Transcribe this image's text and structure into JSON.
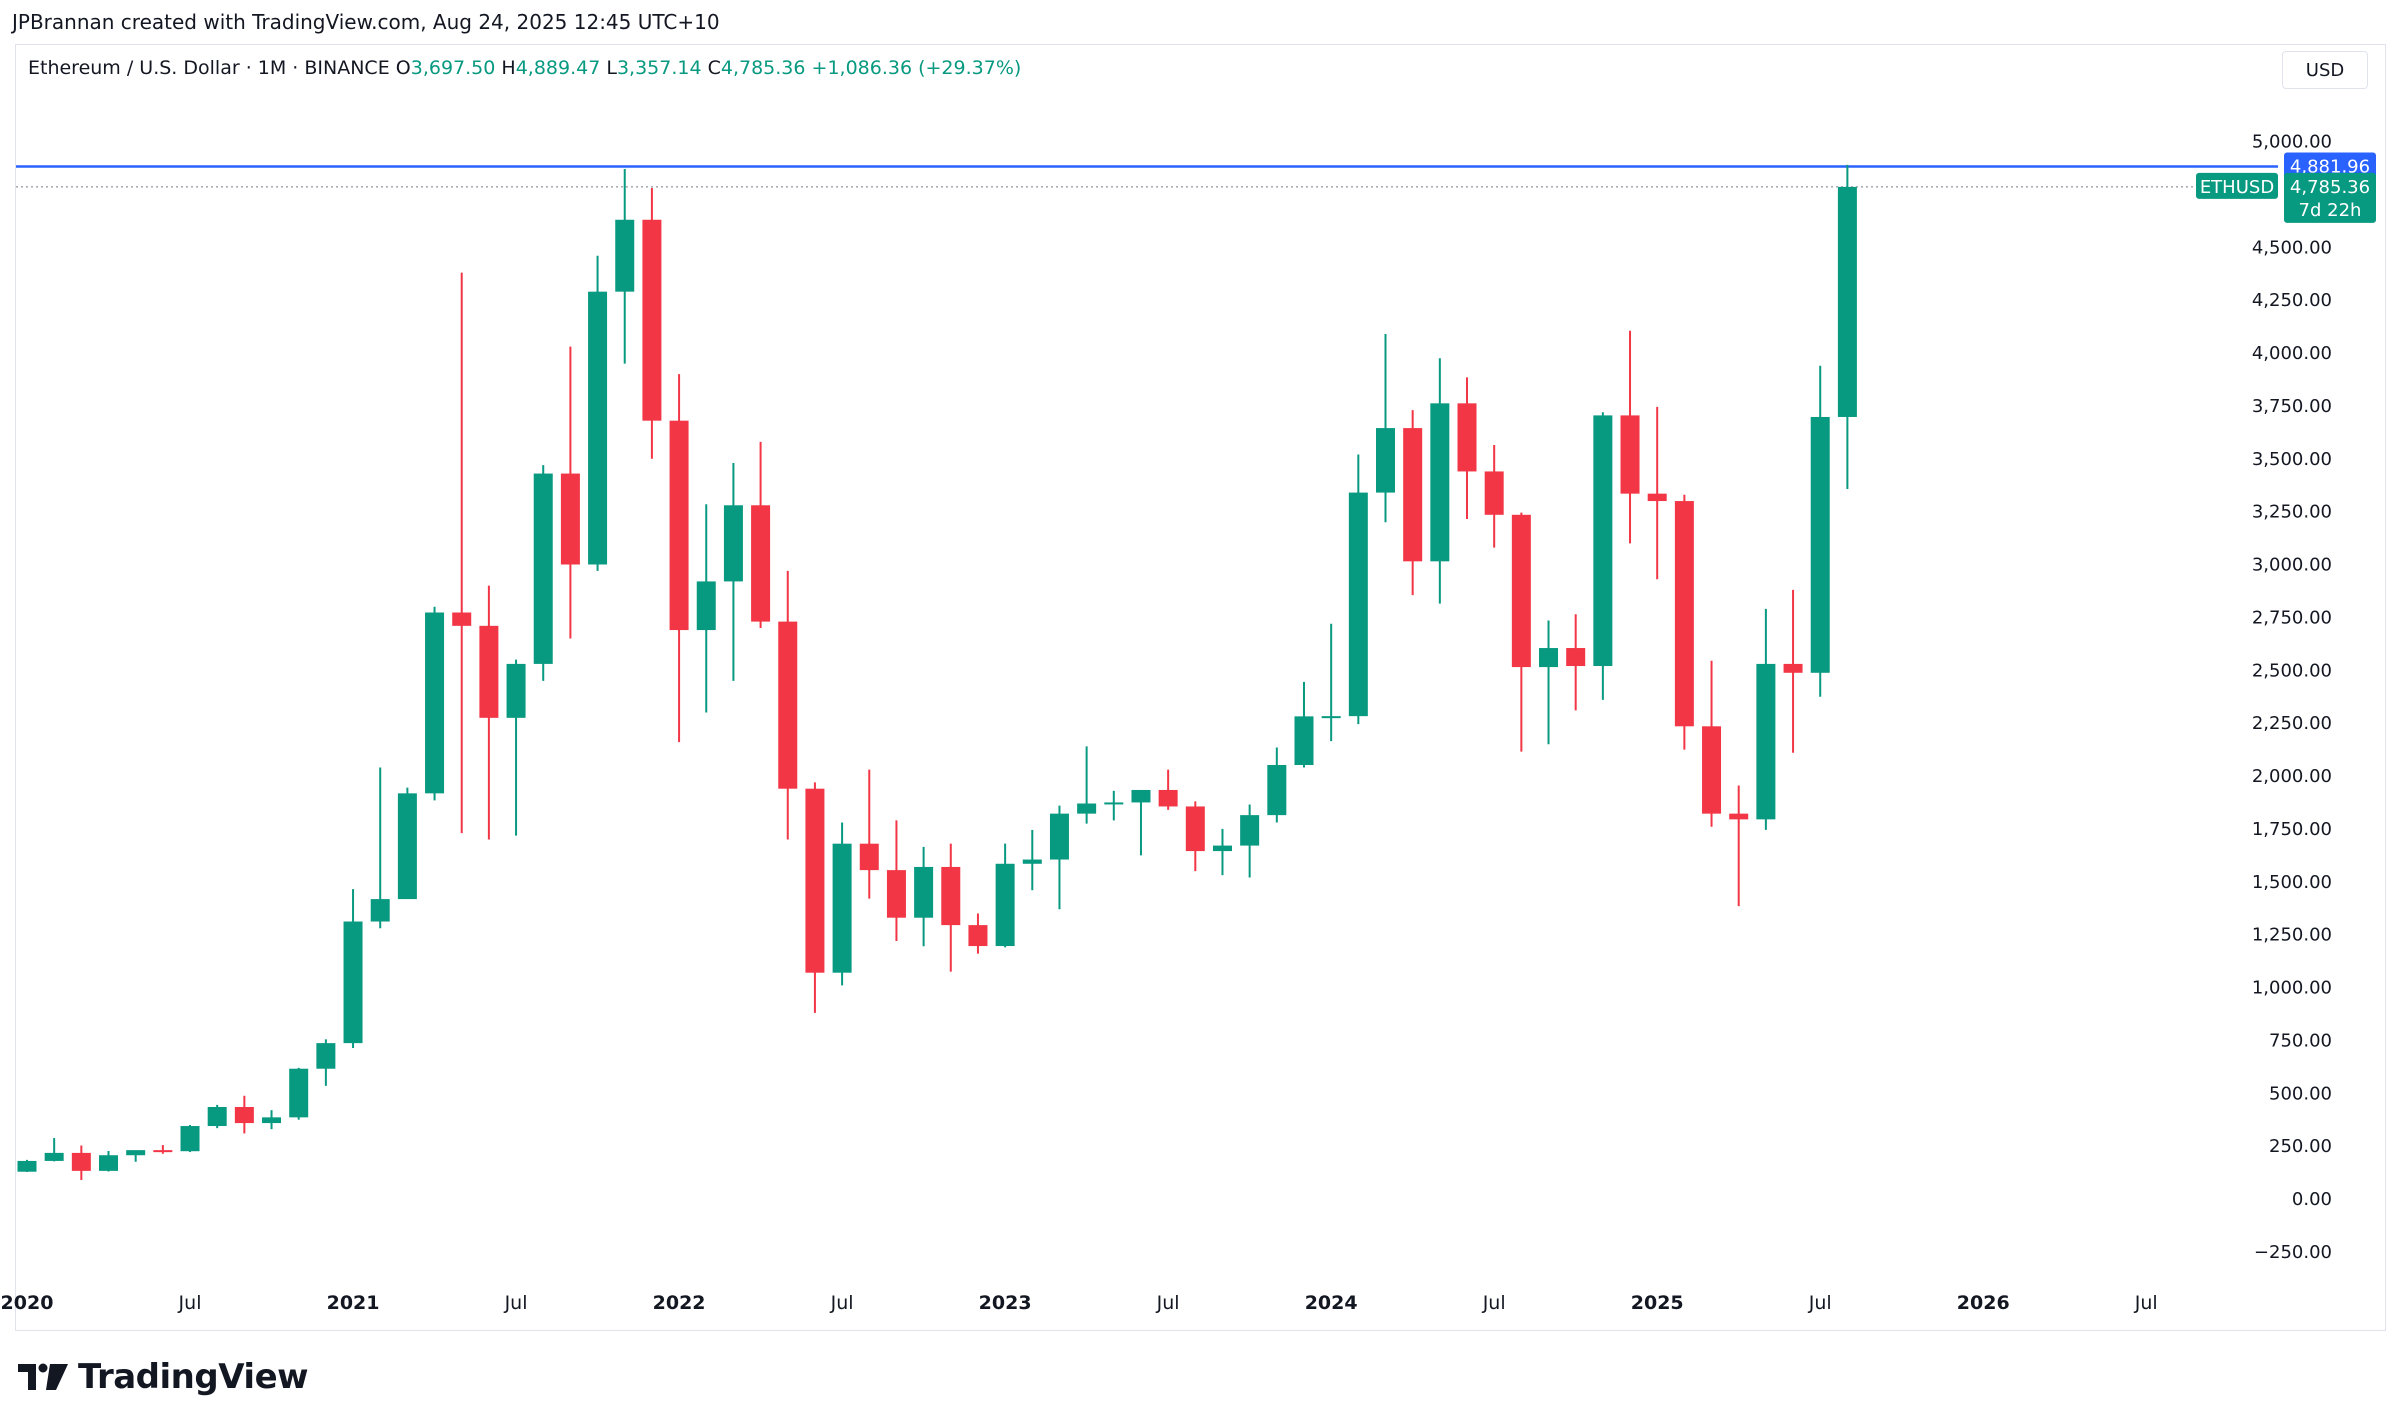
{
  "header": {
    "attribution": "JPBrannan created with TradingView.com, Aug 24, 2025 12:45 UTC+10"
  },
  "legend": {
    "symbol_title": "Ethereum / U.S. Dollar · 1M · BINANCE",
    "open_key": "O",
    "open_value": "3,697.50",
    "high_key": "H",
    "high_value": "4,889.47",
    "low_key": "L",
    "low_value": "3,357.14",
    "close_key": "C",
    "close_value": "4,785.36",
    "change": "+1,086.36 (+29.37%)"
  },
  "currency_button": "USD",
  "footer": {
    "brand": "TradingView"
  },
  "colors": {
    "up": "#089981",
    "down": "#f23645",
    "hline": "#2962ff",
    "grid": "#e0e3eb"
  },
  "chart_data": {
    "type": "candlestick",
    "y_ticks": [
      -250,
      0,
      250,
      500,
      750,
      1000,
      1250,
      1500,
      1750,
      2000,
      2250,
      2500,
      2750,
      3000,
      3250,
      3500,
      3750,
      4000,
      4250,
      4500,
      5000
    ],
    "y_tick_labels": [
      "−250.00",
      "0.00",
      "250.00",
      "500.00",
      "750.00",
      "1,000.00",
      "1,250.00",
      "1,500.00",
      "1,750.00",
      "2,000.00",
      "2,250.00",
      "2,500.00",
      "2,750.00",
      "3,000.00",
      "3,250.00",
      "3,500.00",
      "3,750.00",
      "4,000.00",
      "4,250.00",
      "4,500.00",
      "5,000.00"
    ],
    "x_labels": [
      {
        "label": "2020",
        "bold": true,
        "month_index": 0
      },
      {
        "label": "Jul",
        "bold": false,
        "month_index": 6
      },
      {
        "label": "2021",
        "bold": true,
        "month_index": 12
      },
      {
        "label": "Jul",
        "bold": false,
        "month_index": 18
      },
      {
        "label": "2022",
        "bold": true,
        "month_index": 24
      },
      {
        "label": "Jul",
        "bold": false,
        "month_index": 30
      },
      {
        "label": "2023",
        "bold": true,
        "month_index": 36
      },
      {
        "label": "Jul",
        "bold": false,
        "month_index": 42
      },
      {
        "label": "2024",
        "bold": true,
        "month_index": 48
      },
      {
        "label": "Jul",
        "bold": false,
        "month_index": 54
      },
      {
        "label": "2025",
        "bold": true,
        "month_index": 60
      },
      {
        "label": "Jul",
        "bold": false,
        "month_index": 66
      },
      {
        "label": "2026",
        "bold": true,
        "month_index": 72
      },
      {
        "label": "Jul",
        "bold": false,
        "month_index": 78
      }
    ],
    "candles": [
      {
        "t": "2020-01",
        "o": 129,
        "h": 185,
        "l": 128,
        "c": 180
      },
      {
        "t": "2020-02",
        "o": 180,
        "h": 288,
        "l": 178,
        "c": 218
      },
      {
        "t": "2020-03",
        "o": 218,
        "h": 253,
        "l": 90,
        "c": 133
      },
      {
        "t": "2020-04",
        "o": 133,
        "h": 227,
        "l": 130,
        "c": 207
      },
      {
        "t": "2020-05",
        "o": 207,
        "h": 224,
        "l": 176,
        "c": 231
      },
      {
        "t": "2020-06",
        "o": 231,
        "h": 255,
        "l": 214,
        "c": 226
      },
      {
        "t": "2020-07",
        "o": 226,
        "h": 350,
        "l": 222,
        "c": 345
      },
      {
        "t": "2020-08",
        "o": 345,
        "h": 445,
        "l": 335,
        "c": 435
      },
      {
        "t": "2020-09",
        "o": 435,
        "h": 488,
        "l": 310,
        "c": 359
      },
      {
        "t": "2020-10",
        "o": 359,
        "h": 420,
        "l": 330,
        "c": 386
      },
      {
        "t": "2020-11",
        "o": 386,
        "h": 620,
        "l": 375,
        "c": 616
      },
      {
        "t": "2020-12",
        "o": 616,
        "h": 755,
        "l": 535,
        "c": 737
      },
      {
        "t": "2021-01",
        "o": 737,
        "h": 1465,
        "l": 714,
        "c": 1312
      },
      {
        "t": "2021-02",
        "o": 1312,
        "h": 2040,
        "l": 1280,
        "c": 1418
      },
      {
        "t": "2021-03",
        "o": 1418,
        "h": 1945,
        "l": 1430,
        "c": 1918
      },
      {
        "t": "2021-04",
        "o": 1918,
        "h": 2800,
        "l": 1885,
        "c": 2773
      },
      {
        "t": "2021-05",
        "o": 2773,
        "h": 4380,
        "l": 1730,
        "c": 2710
      },
      {
        "t": "2021-06",
        "o": 2710,
        "h": 2900,
        "l": 1700,
        "c": 2275
      },
      {
        "t": "2021-07",
        "o": 2275,
        "h": 2550,
        "l": 1718,
        "c": 2530
      },
      {
        "t": "2021-08",
        "o": 2530,
        "h": 3470,
        "l": 2450,
        "c": 3430
      },
      {
        "t": "2021-09",
        "o": 3430,
        "h": 4030,
        "l": 2650,
        "c": 3000
      },
      {
        "t": "2021-10",
        "o": 3000,
        "h": 4460,
        "l": 2970,
        "c": 4290
      },
      {
        "t": "2021-11",
        "o": 4290,
        "h": 4870,
        "l": 3950,
        "c": 4630
      },
      {
        "t": "2021-12",
        "o": 4630,
        "h": 4780,
        "l": 3500,
        "c": 3680
      },
      {
        "t": "2022-01",
        "o": 3680,
        "h": 3900,
        "l": 2160,
        "c": 2690
      },
      {
        "t": "2022-02",
        "o": 2690,
        "h": 3285,
        "l": 2300,
        "c": 2920
      },
      {
        "t": "2022-03",
        "o": 2920,
        "h": 3480,
        "l": 2450,
        "c": 3280
      },
      {
        "t": "2022-04",
        "o": 3280,
        "h": 3580,
        "l": 2700,
        "c": 2730
      },
      {
        "t": "2022-05",
        "o": 2730,
        "h": 2970,
        "l": 1700,
        "c": 1940
      },
      {
        "t": "2022-06",
        "o": 1940,
        "h": 1970,
        "l": 880,
        "c": 1070
      },
      {
        "t": "2022-07",
        "o": 1070,
        "h": 1780,
        "l": 1010,
        "c": 1680
      },
      {
        "t": "2022-08",
        "o": 1680,
        "h": 2030,
        "l": 1420,
        "c": 1555
      },
      {
        "t": "2022-09",
        "o": 1555,
        "h": 1790,
        "l": 1220,
        "c": 1330
      },
      {
        "t": "2022-10",
        "o": 1330,
        "h": 1665,
        "l": 1195,
        "c": 1570
      },
      {
        "t": "2022-11",
        "o": 1570,
        "h": 1680,
        "l": 1075,
        "c": 1295
      },
      {
        "t": "2022-12",
        "o": 1295,
        "h": 1350,
        "l": 1160,
        "c": 1196
      },
      {
        "t": "2023-01",
        "o": 1196,
        "h": 1680,
        "l": 1190,
        "c": 1585
      },
      {
        "t": "2023-02",
        "o": 1585,
        "h": 1745,
        "l": 1460,
        "c": 1605
      },
      {
        "t": "2023-03",
        "o": 1605,
        "h": 1860,
        "l": 1370,
        "c": 1822
      },
      {
        "t": "2023-04",
        "o": 1822,
        "h": 2140,
        "l": 1775,
        "c": 1870
      },
      {
        "t": "2023-05",
        "o": 1870,
        "h": 1930,
        "l": 1790,
        "c": 1875
      },
      {
        "t": "2023-06",
        "o": 1875,
        "h": 1930,
        "l": 1625,
        "c": 1934
      },
      {
        "t": "2023-07",
        "o": 1934,
        "h": 2030,
        "l": 1840,
        "c": 1856
      },
      {
        "t": "2023-08",
        "o": 1856,
        "h": 1880,
        "l": 1550,
        "c": 1645
      },
      {
        "t": "2023-09",
        "o": 1645,
        "h": 1750,
        "l": 1531,
        "c": 1671
      },
      {
        "t": "2023-10",
        "o": 1671,
        "h": 1865,
        "l": 1520,
        "c": 1815
      },
      {
        "t": "2023-11",
        "o": 1815,
        "h": 2135,
        "l": 1780,
        "c": 2052
      },
      {
        "t": "2023-12",
        "o": 2052,
        "h": 2445,
        "l": 2040,
        "c": 2282
      },
      {
        "t": "2024-01",
        "o": 2282,
        "h": 2720,
        "l": 2165,
        "c": 2283
      },
      {
        "t": "2024-02",
        "o": 2283,
        "h": 3520,
        "l": 2245,
        "c": 3340
      },
      {
        "t": "2024-03",
        "o": 3340,
        "h": 4090,
        "l": 3200,
        "c": 3645
      },
      {
        "t": "2024-04",
        "o": 3645,
        "h": 3730,
        "l": 2855,
        "c": 3015
      },
      {
        "t": "2024-05",
        "o": 3015,
        "h": 3975,
        "l": 2815,
        "c": 3762
      },
      {
        "t": "2024-06",
        "o": 3762,
        "h": 3885,
        "l": 3215,
        "c": 3440
      },
      {
        "t": "2024-07",
        "o": 3440,
        "h": 3565,
        "l": 3080,
        "c": 3235
      },
      {
        "t": "2024-08",
        "o": 3235,
        "h": 3245,
        "l": 2115,
        "c": 2515
      },
      {
        "t": "2024-09",
        "o": 2515,
        "h": 2735,
        "l": 2150,
        "c": 2605
      },
      {
        "t": "2024-10",
        "o": 2605,
        "h": 2765,
        "l": 2310,
        "c": 2520
      },
      {
        "t": "2024-11",
        "o": 2520,
        "h": 3720,
        "l": 2360,
        "c": 3705
      },
      {
        "t": "2024-12",
        "o": 3705,
        "h": 4105,
        "l": 3100,
        "c": 3335
      },
      {
        "t": "2025-01",
        "o": 3335,
        "h": 3745,
        "l": 2930,
        "c": 3300
      },
      {
        "t": "2025-02",
        "o": 3300,
        "h": 3330,
        "l": 2125,
        "c": 2235
      },
      {
        "t": "2025-03",
        "o": 2235,
        "h": 2545,
        "l": 1760,
        "c": 1822
      },
      {
        "t": "2025-04",
        "o": 1822,
        "h": 1955,
        "l": 1385,
        "c": 1795
      },
      {
        "t": "2025-05",
        "o": 1795,
        "h": 2790,
        "l": 1745,
        "c": 2530
      },
      {
        "t": "2025-06",
        "o": 2530,
        "h": 2880,
        "l": 2110,
        "c": 2488
      },
      {
        "t": "2025-07",
        "o": 2488,
        "h": 3940,
        "l": 2375,
        "c": 3697.5
      },
      {
        "t": "2025-08",
        "o": 3697.5,
        "h": 4889.47,
        "l": 3357.14,
        "c": 4785.36
      }
    ],
    "horizontal_line": {
      "value": 4881.96,
      "label": "4,881.96"
    },
    "last_price": {
      "symbol": "ETHUSD",
      "value": 4785.36,
      "label": "4,785.36",
      "countdown": "7d 22h"
    }
  }
}
